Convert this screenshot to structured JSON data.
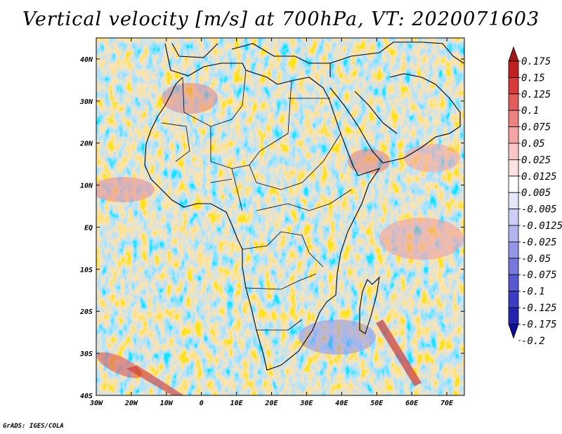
{
  "title": "Vertical velocity [m/s] at 700hPa, VT: 2020071603",
  "credit": "GrADS: IGES/COLA",
  "map": {
    "lon_range": [
      -30,
      75
    ],
    "lat_range": [
      -40,
      45
    ],
    "lon_ticks": [
      "30W",
      "20W",
      "10W",
      "0",
      "10E",
      "20E",
      "30E",
      "40E",
      "50E",
      "60E",
      "70E"
    ],
    "lat_ticks": [
      "40N",
      "30N",
      "20N",
      "10N",
      "EQ",
      "10S",
      "20S",
      "30S",
      "40S"
    ]
  },
  "colorbar": {
    "labels": [
      "0.175",
      "0.15",
      "0.125",
      "0.1",
      "0.075",
      "0.05",
      "0.025",
      "0.0125",
      "0.005",
      "-0.005",
      "-0.0125",
      "-0.025",
      "-0.05",
      "-0.075",
      "-0.1",
      "-0.125",
      "-0.175",
      "-0.2"
    ],
    "colors": [
      "#a01818",
      "#c12020",
      "#d63a3a",
      "#e25c5c",
      "#ec8282",
      "#f3a5a5",
      "#f8c6c6",
      "#fce2e2",
      "#ffffff",
      "#e6e6fb",
      "#cdcdf5",
      "#b3b3ef",
      "#9696e6",
      "#7777dc",
      "#5858d0",
      "#3d3dc3",
      "#2323b0",
      "#0e0e98"
    ]
  }
}
